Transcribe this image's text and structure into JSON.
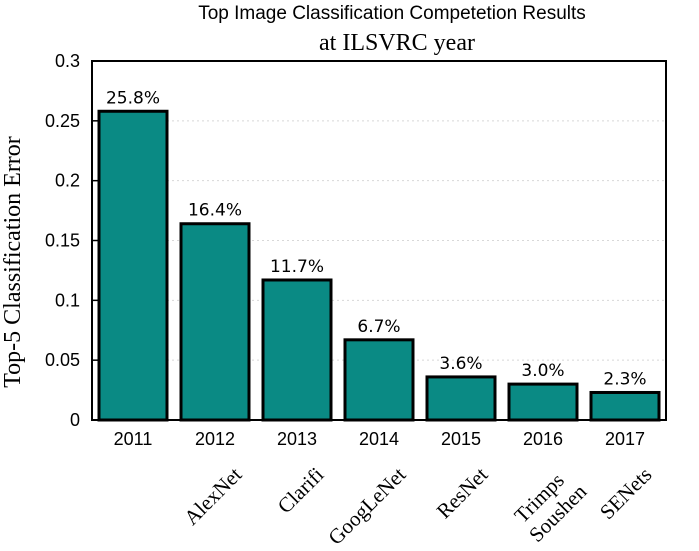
{
  "chart_data": {
    "type": "bar",
    "title": "Top Image Classification Competetion Results",
    "subtitle": "at ILSVRC year",
    "xlabel": "",
    "ylabel": "Top-5 Classification Error",
    "categories": [
      "2011",
      "2012",
      "2013",
      "2014",
      "2015",
      "2016",
      "2017"
    ],
    "values": [
      0.258,
      0.164,
      0.117,
      0.067,
      0.036,
      0.03,
      0.023
    ],
    "data_labels": [
      "25.8%",
      "16.4%",
      "11.7%",
      "6.7%",
      "3.6%",
      "3.0%",
      "2.3%"
    ],
    "model_names": [
      [],
      [
        "AlexNet"
      ],
      [
        "Clarifi"
      ],
      [
        "GoogLeNet"
      ],
      [
        "ResNet"
      ],
      [
        "Trimps",
        "Soushen"
      ],
      [
        "SENets"
      ]
    ],
    "ylim": [
      0,
      0.3
    ],
    "yticks": [
      0,
      0.05,
      0.1,
      0.15,
      0.2,
      0.25,
      0.3
    ],
    "ytick_labels": [
      "0",
      "0.05",
      "0.1",
      "0.15",
      "0.2",
      "0.25",
      "0.3"
    ],
    "grid": true,
    "bar_color": "#0a8a84"
  }
}
